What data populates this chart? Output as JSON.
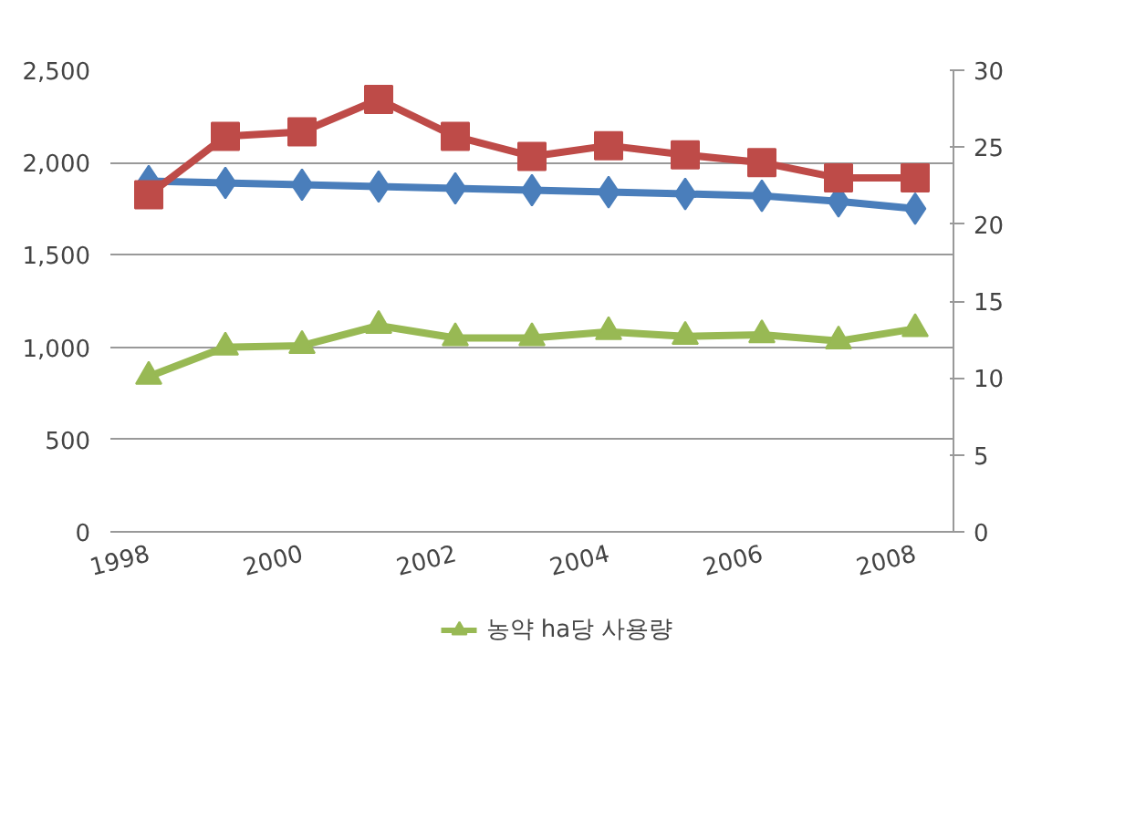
{
  "chart_data": {
    "type": "line",
    "categories": [
      "1998",
      null,
      "2000",
      null,
      "2002",
      null,
      "2004",
      null,
      "2006",
      null,
      "2008"
    ],
    "series": [
      {
        "color": "#4a7ebb",
        "marker": "diamond",
        "values": [
          1900,
          1890,
          1880,
          1870,
          1860,
          1850,
          1840,
          1830,
          1820,
          1790,
          1750
        ]
      },
      {
        "color": "#be4b48",
        "marker": "square",
        "axis": "y2",
        "values": [
          21.9,
          25.7,
          26.0,
          28.1,
          25.7,
          24.4,
          25.1,
          24.5,
          24.0,
          23.0,
          23.0
        ]
      },
      {
        "name": "농약 ha당 사용량",
        "color": "#98b954",
        "marker": "triangle",
        "axis": "y2",
        "values": [
          10.1,
          12.0,
          12.1,
          13.4,
          12.6,
          12.6,
          13.0,
          12.7,
          12.8,
          12.4,
          13.2
        ]
      }
    ],
    "ylim": [
      0,
      2500
    ],
    "yticks": [
      {
        "value": 0,
        "label": "0"
      },
      {
        "value": 500,
        "label": "500"
      },
      {
        "value": 1000,
        "label": "1,000"
      },
      {
        "value": 1500,
        "label": "1,500"
      },
      {
        "value": 2000,
        "label": "2,000"
      },
      {
        "value": 2500,
        "label": "2,500"
      }
    ],
    "y2lim": [
      0,
      30
    ],
    "y2ticks": [
      0,
      5,
      10,
      15,
      20,
      25,
      30
    ],
    "grid": "y",
    "legend": "bottom"
  }
}
